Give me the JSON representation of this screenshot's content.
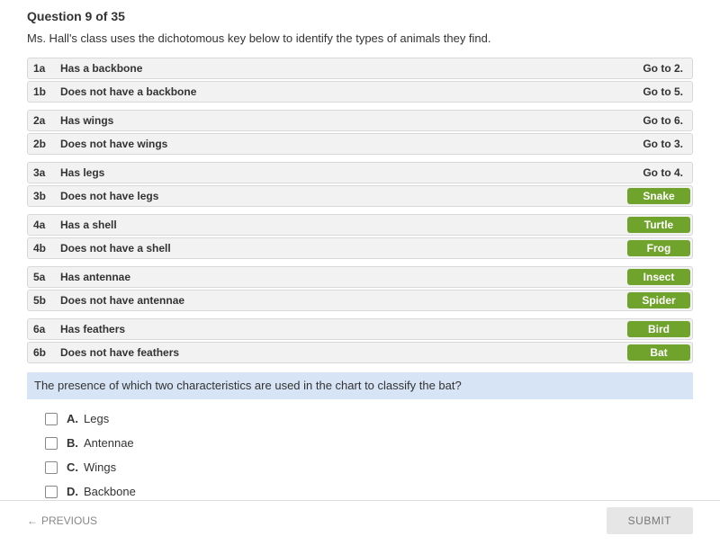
{
  "header": "Question 9 of 35",
  "prompt": "Ms. Hall's class uses the dichotomous key below to identify the types of animals they find.",
  "key_groups": [
    [
      {
        "id": "1a",
        "trait": "Has a backbone",
        "result": "Go to 2.",
        "badge": false
      },
      {
        "id": "1b",
        "trait": "Does not have a backbone",
        "result": "Go to 5.",
        "badge": false
      }
    ],
    [
      {
        "id": "2a",
        "trait": "Has wings",
        "result": "Go to 6.",
        "badge": false
      },
      {
        "id": "2b",
        "trait": "Does not have wings",
        "result": "Go to 3.",
        "badge": false
      }
    ],
    [
      {
        "id": "3a",
        "trait": "Has legs",
        "result": "Go to 4.",
        "badge": false
      },
      {
        "id": "3b",
        "trait": "Does not have legs",
        "result": "Snake",
        "badge": true
      }
    ],
    [
      {
        "id": "4a",
        "trait": "Has a shell",
        "result": "Turtle",
        "badge": true
      },
      {
        "id": "4b",
        "trait": "Does not have a shell",
        "result": "Frog",
        "badge": true
      }
    ],
    [
      {
        "id": "5a",
        "trait": "Has antennae",
        "result": "Insect",
        "badge": true
      },
      {
        "id": "5b",
        "trait": "Does not have antennae",
        "result": "Spider",
        "badge": true
      }
    ],
    [
      {
        "id": "6a",
        "trait": "Has feathers",
        "result": "Bird",
        "badge": true
      },
      {
        "id": "6b",
        "trait": "Does not have feathers",
        "result": "Bat",
        "badge": true
      }
    ]
  ],
  "question": "The presence of which two characteristics are used in the chart to classify the bat?",
  "choices": [
    {
      "letter": "A.",
      "text": "Legs"
    },
    {
      "letter": "B.",
      "text": "Antennae"
    },
    {
      "letter": "C.",
      "text": "Wings"
    },
    {
      "letter": "D.",
      "text": "Backbone"
    }
  ],
  "footer": {
    "previous": "PREVIOUS",
    "submit": "SUBMIT"
  },
  "colors": {
    "badge_bg": "#6fa32c",
    "row_bg": "#f2f2f2",
    "row_border": "#d8d8d8",
    "question_bg": "#d6e4f5",
    "submit_bg": "#e6e6e6"
  }
}
